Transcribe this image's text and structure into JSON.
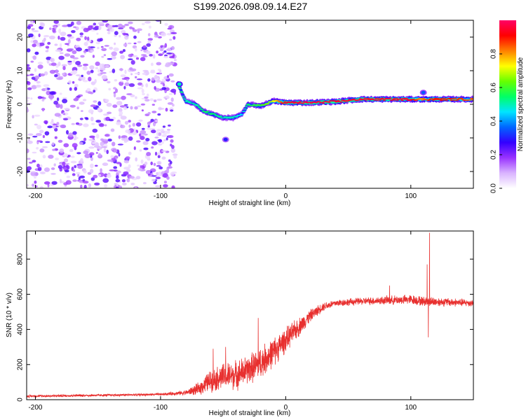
{
  "title": "S199.2026.098.09.14.E27",
  "chart_data": [
    {
      "type": "heatmap",
      "name": "spectrogram",
      "xlabel": "Height of straight line (km)",
      "ylabel": "Frequency (Hz)",
      "xlim": [
        -207,
        150
      ],
      "ylim": [
        -25,
        25
      ],
      "xticks": [
        -200,
        -100,
        0,
        100
      ],
      "yticks": [
        -20,
        -10,
        0,
        10,
        20
      ],
      "colorbar": {
        "label": "Normalized spectral amplitude",
        "range": [
          0,
          1
        ],
        "ticks": [
          0.0,
          0.2,
          0.4,
          0.6,
          0.8
        ],
        "colormap": [
          "#ffffff",
          "#d9b3ff",
          "#9933ff",
          "#3300ff",
          "#0066ff",
          "#00e5ff",
          "#00ff66",
          "#66ff00",
          "#ffff00",
          "#ff8000",
          "#ff0000",
          "#ff0066"
        ]
      },
      "noise_region_x": [
        -207,
        -88
      ],
      "ridge": {
        "x": [
          -86,
          -80,
          -72,
          -66,
          -58,
          -50,
          -42,
          -35,
          -30,
          -20,
          -10,
          0,
          20,
          40,
          60,
          80,
          100,
          108,
          115,
          130,
          150
        ],
        "freq": [
          6,
          1,
          0,
          -2,
          -3,
          -4,
          -4,
          -3,
          0,
          -0.5,
          1,
          0.5,
          0.5,
          0.8,
          1.5,
          1.5,
          1.5,
          1.5,
          1.5,
          1.5,
          1.5
        ],
        "amplitude": [
          0.55,
          0.5,
          0.5,
          0.55,
          0.55,
          0.5,
          0.5,
          0.45,
          0.55,
          0.6,
          0.7,
          0.95,
          0.97,
          0.95,
          0.95,
          0.95,
          0.95,
          0.8,
          0.9,
          0.9,
          0.85
        ]
      },
      "side_features": [
        {
          "x": -85,
          "freq": 6,
          "amplitude": 0.5
        },
        {
          "x": -48,
          "freq": -10.5,
          "amplitude": 0.3
        },
        {
          "x": 110,
          "freq": 3.5,
          "amplitude": 0.35
        }
      ]
    },
    {
      "type": "line",
      "name": "snr",
      "xlabel": "Height of straight line (km)",
      "ylabel": "SNR (10 * v/v)",
      "xlim": [
        -207,
        150
      ],
      "ylim": [
        0,
        960
      ],
      "xticks": [
        -200,
        -100,
        0,
        100
      ],
      "yticks": [
        0,
        200,
        400,
        600,
        800
      ],
      "line_color": "#e8302f",
      "series": [
        {
          "name": "SNR",
          "x": [
            -207,
            -150,
            -100,
            -80,
            -70,
            -60,
            -50,
            -40,
            -30,
            -20,
            -10,
            0,
            10,
            20,
            30,
            40,
            60,
            80,
            100,
            110,
            150
          ],
          "values": [
            20,
            25,
            30,
            40,
            60,
            110,
            130,
            140,
            170,
            210,
            270,
            340,
            410,
            480,
            530,
            550,
            560,
            565,
            570,
            560,
            550
          ],
          "noise_amplitude": [
            5,
            5,
            5,
            10,
            25,
            45,
            55,
            60,
            60,
            65,
            60,
            50,
            40,
            25,
            18,
            15,
            15,
            18,
            20,
            20,
            15
          ]
        }
      ],
      "spikes": [
        {
          "x": -58,
          "value": 290
        },
        {
          "x": -48,
          "value": 300
        },
        {
          "x": -22,
          "value": 465
        },
        {
          "x": 83,
          "value": 650
        },
        {
          "x": 113,
          "value": 770
        },
        {
          "x": 115,
          "value": 950
        },
        {
          "x": 114,
          "value": 355
        }
      ]
    }
  ]
}
